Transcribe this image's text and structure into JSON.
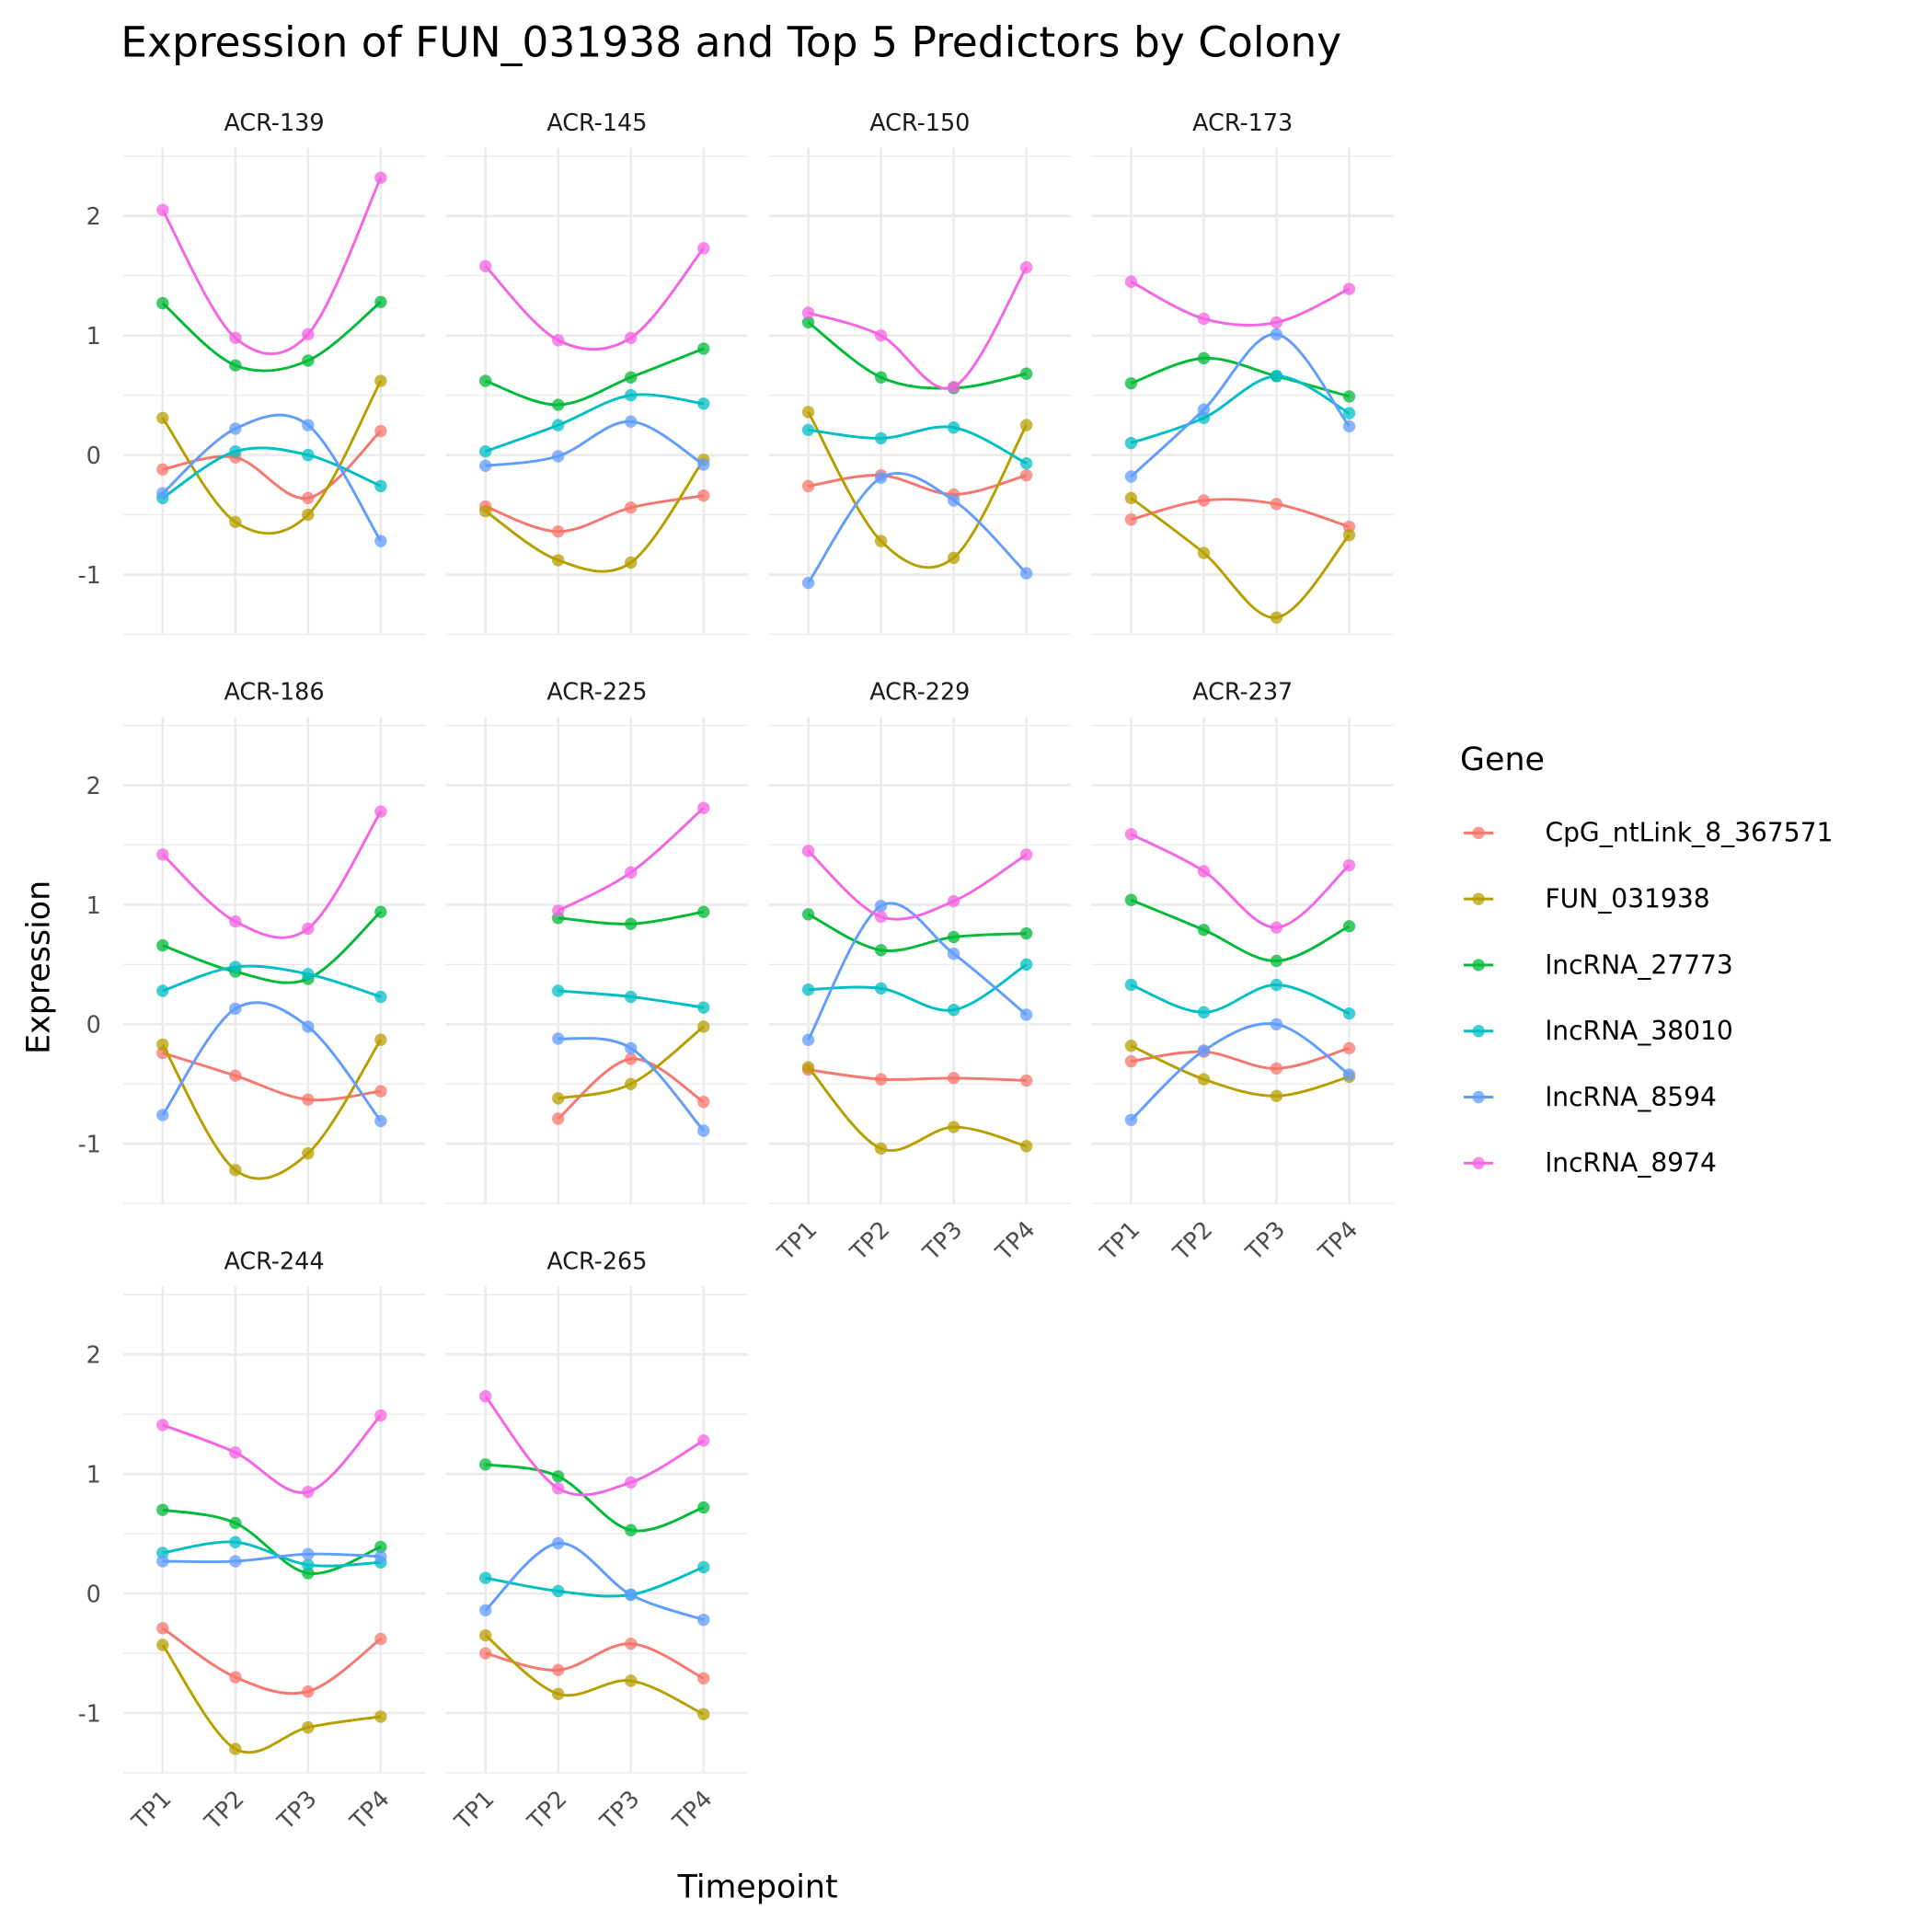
{
  "chart_data": {
    "type": "line",
    "title": "Expression of FUN_031938 and Top 5 Predictors by Colony",
    "xlabel": "Timepoint",
    "ylabel": "Expression",
    "x": [
      "TP1",
      "TP2",
      "TP3",
      "TP4"
    ],
    "yticks": [
      "-1",
      "0",
      "1",
      "2"
    ],
    "ylim": [
      -1.55,
      2.57
    ],
    "grid": true,
    "legend": {
      "title": "Gene",
      "position": "right"
    },
    "genes": [
      {
        "name": "CpG_ntLink_8_367571",
        "color": "#F8766D"
      },
      {
        "name": "FUN_031938",
        "color": "#B79F00"
      },
      {
        "name": "lncRNA_27773",
        "color": "#00BA38"
      },
      {
        "name": "lncRNA_38010",
        "color": "#00BFC4"
      },
      {
        "name": "lncRNA_8594",
        "color": "#619CFF"
      },
      {
        "name": "lncRNA_8974",
        "color": "#F564E3"
      }
    ],
    "panels": [
      {
        "colony": "ACR-139",
        "series": [
          [
            -0.12,
            -0.02,
            -0.36,
            0.2
          ],
          [
            0.31,
            -0.56,
            -0.5,
            0.62
          ],
          [
            1.27,
            0.75,
            0.79,
            1.28
          ],
          [
            -0.36,
            0.03,
            0.0,
            -0.26
          ],
          [
            -0.32,
            0.22,
            0.25,
            -0.72
          ],
          [
            2.05,
            0.98,
            1.01,
            2.32
          ]
        ]
      },
      {
        "colony": "ACR-145",
        "series": [
          [
            -0.43,
            -0.64,
            -0.44,
            -0.34
          ],
          [
            -0.47,
            -0.88,
            -0.9,
            -0.04
          ],
          [
            0.62,
            0.42,
            0.65,
            0.89
          ],
          [
            0.03,
            0.25,
            0.5,
            0.43
          ],
          [
            -0.09,
            -0.01,
            0.28,
            -0.08
          ],
          [
            1.58,
            0.96,
            0.98,
            1.73
          ]
        ]
      },
      {
        "colony": "ACR-150",
        "series": [
          [
            -0.26,
            -0.17,
            -0.33,
            -0.17
          ],
          [
            0.36,
            -0.72,
            -0.86,
            0.25
          ],
          [
            1.11,
            0.65,
            0.56,
            0.68
          ],
          [
            0.21,
            0.14,
            0.23,
            -0.07
          ],
          [
            -1.07,
            -0.19,
            -0.38,
            -0.99
          ],
          [
            1.19,
            1.0,
            0.57,
            1.57
          ]
        ]
      },
      {
        "colony": "ACR-173",
        "series": [
          [
            -0.54,
            -0.38,
            -0.41,
            -0.6
          ],
          [
            -0.36,
            -0.82,
            -1.36,
            -0.67
          ],
          [
            0.6,
            0.81,
            0.66,
            0.49
          ],
          [
            0.1,
            0.31,
            0.66,
            0.35
          ],
          [
            -0.18,
            0.38,
            1.01,
            0.24
          ],
          [
            1.45,
            1.14,
            1.11,
            1.39
          ]
        ]
      },
      {
        "colony": "ACR-186",
        "series": [
          [
            -0.24,
            -0.43,
            -0.63,
            -0.56
          ],
          [
            -0.17,
            -1.22,
            -1.08,
            -0.13
          ],
          [
            0.66,
            0.44,
            0.38,
            0.94
          ],
          [
            0.28,
            0.48,
            0.42,
            0.23
          ],
          [
            -0.76,
            0.13,
            -0.02,
            -0.81
          ],
          [
            1.42,
            0.86,
            0.8,
            1.78
          ]
        ]
      },
      {
        "colony": "ACR-225",
        "series": [
          [
            null,
            -0.79,
            -0.29,
            -0.65
          ],
          [
            null,
            -0.62,
            -0.5,
            -0.02
          ],
          [
            null,
            0.89,
            0.84,
            0.94
          ],
          [
            null,
            0.28,
            0.23,
            0.14
          ],
          [
            null,
            -0.12,
            -0.2,
            -0.89
          ],
          [
            null,
            0.95,
            1.27,
            1.81
          ]
        ]
      },
      {
        "colony": "ACR-229",
        "series": [
          [
            -0.38,
            -0.46,
            -0.45,
            -0.47
          ],
          [
            -0.36,
            -1.04,
            -0.86,
            -1.02
          ],
          [
            0.92,
            0.62,
            0.73,
            0.76
          ],
          [
            0.29,
            0.3,
            0.12,
            0.5
          ],
          [
            -0.13,
            0.99,
            0.59,
            0.08
          ],
          [
            1.45,
            0.9,
            1.03,
            1.42
          ]
        ]
      },
      {
        "colony": "ACR-237",
        "series": [
          [
            -0.31,
            -0.23,
            -0.37,
            -0.2
          ],
          [
            -0.18,
            -0.46,
            -0.6,
            -0.44
          ],
          [
            1.04,
            0.79,
            0.53,
            0.82
          ],
          [
            0.33,
            0.1,
            0.33,
            0.09
          ],
          [
            -0.8,
            -0.22,
            0.0,
            -0.42
          ],
          [
            1.59,
            1.28,
            0.81,
            1.33
          ]
        ]
      },
      {
        "colony": "ACR-244",
        "series": [
          [
            -0.29,
            -0.7,
            -0.82,
            -0.38
          ],
          [
            -0.43,
            -1.3,
            -1.12,
            -1.03
          ],
          [
            0.7,
            0.59,
            0.17,
            0.39
          ],
          [
            0.34,
            0.43,
            0.24,
            0.26
          ],
          [
            0.27,
            0.27,
            0.33,
            0.31
          ],
          [
            1.41,
            1.18,
            0.85,
            1.49
          ]
        ]
      },
      {
        "colony": "ACR-265",
        "series": [
          [
            -0.5,
            -0.64,
            -0.42,
            -0.71
          ],
          [
            -0.35,
            -0.84,
            -0.73,
            -1.01
          ],
          [
            1.08,
            0.98,
            0.53,
            0.72
          ],
          [
            0.13,
            0.02,
            -0.01,
            0.22
          ],
          [
            -0.14,
            0.42,
            -0.01,
            -0.22
          ],
          [
            1.65,
            0.88,
            0.93,
            1.28
          ]
        ]
      }
    ]
  }
}
